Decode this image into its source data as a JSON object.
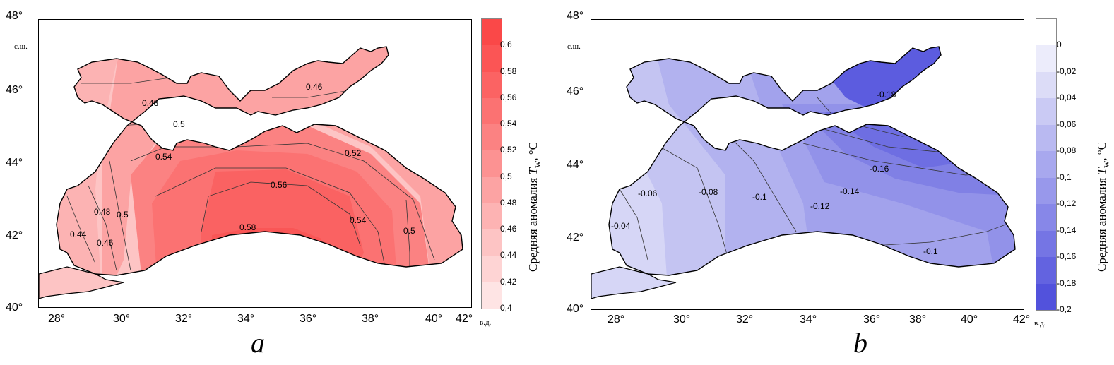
{
  "panels": [
    {
      "letter": "a",
      "lat_unit": "с.ш.",
      "lon_unit": "в.д.",
      "lat_ticks": [
        "48°",
        "46°",
        "44°",
        "42°",
        "40°"
      ],
      "lon_ticks": [
        "28°",
        "30°",
        "32°",
        "34°",
        "36°",
        "38°",
        "40°",
        "42°"
      ],
      "colorbar": {
        "title_prefix": "Средняя аномалия",
        "title_var": "T",
        "title_sub": "w",
        "title_unit": ", °С",
        "labels": [
          "0,6",
          "0,58",
          "0,56",
          "0,54",
          "0,52",
          "0,5",
          "0,48",
          "0,46",
          "0,44",
          "0,42",
          "0,4"
        ],
        "colors": [
          "#fa4848",
          "#fb5555",
          "#fb6363",
          "#fb7272",
          "#fb8282",
          "#fc9292",
          "#fca3a3",
          "#fdb3b3",
          "#fdc4c4",
          "#fed4d4",
          "#fee4e4"
        ]
      },
      "contour_labels": [
        "0.46",
        "0.48",
        "0.5",
        "0.54",
        "0.52",
        "0.56",
        "0.48",
        "0.5",
        "0.54",
        "0.5",
        "0.44",
        "0.46",
        "0.58"
      ],
      "region_colors": {
        "r1": "#fdc4c4",
        "r2": "#fcb3b3",
        "r3": "#fca3a3",
        "r4": "#fb9292",
        "r5": "#fb8282",
        "r6": "#fb7272",
        "r7": "#fa6262",
        "r8": "#f95656"
      }
    },
    {
      "letter": "b",
      "lat_unit": "с.ш.",
      "lon_unit": "в.д.",
      "lat_ticks": [
        "48°",
        "46°",
        "44°",
        "42°",
        "40°"
      ],
      "lon_ticks": [
        "28°",
        "30°",
        "32°",
        "34°",
        "36°",
        "38°",
        "40°",
        "42°"
      ],
      "colorbar": {
        "title_prefix": "Средняя аномалия",
        "title_var": "T",
        "title_sub": "w",
        "title_unit": ", °С",
        "labels": [
          "0",
          "-0,02",
          "-0,04",
          "-0,06",
          "-0,08",
          "-0,1",
          "-0,12",
          "-0,14",
          "-0,16",
          "-0,18",
          "-0,2"
        ],
        "colors": [
          "#ffffff",
          "#ececfb",
          "#dcdcf7",
          "#cacaf4",
          "#b9b9f1",
          "#a8a8ee",
          "#9898eb",
          "#8787e8",
          "#7575e4",
          "#6363e0",
          "#5252dc"
        ]
      },
      "contour_labels": [
        "-0.18",
        "-0.16",
        "-0.14",
        "-0.12",
        "-0.1",
        "-0.08",
        "-0.06",
        "-0.04",
        "-0.1"
      ],
      "region_colors": {
        "r1": "#d6d6f6",
        "r2": "#c4c4f2",
        "r3": "#b2b2ef",
        "r4": "#a2a2ec",
        "r5": "#9292e9",
        "r6": "#8080e5",
        "r7": "#6e6ee2",
        "r8": "#5c5cdf"
      }
    }
  ]
}
